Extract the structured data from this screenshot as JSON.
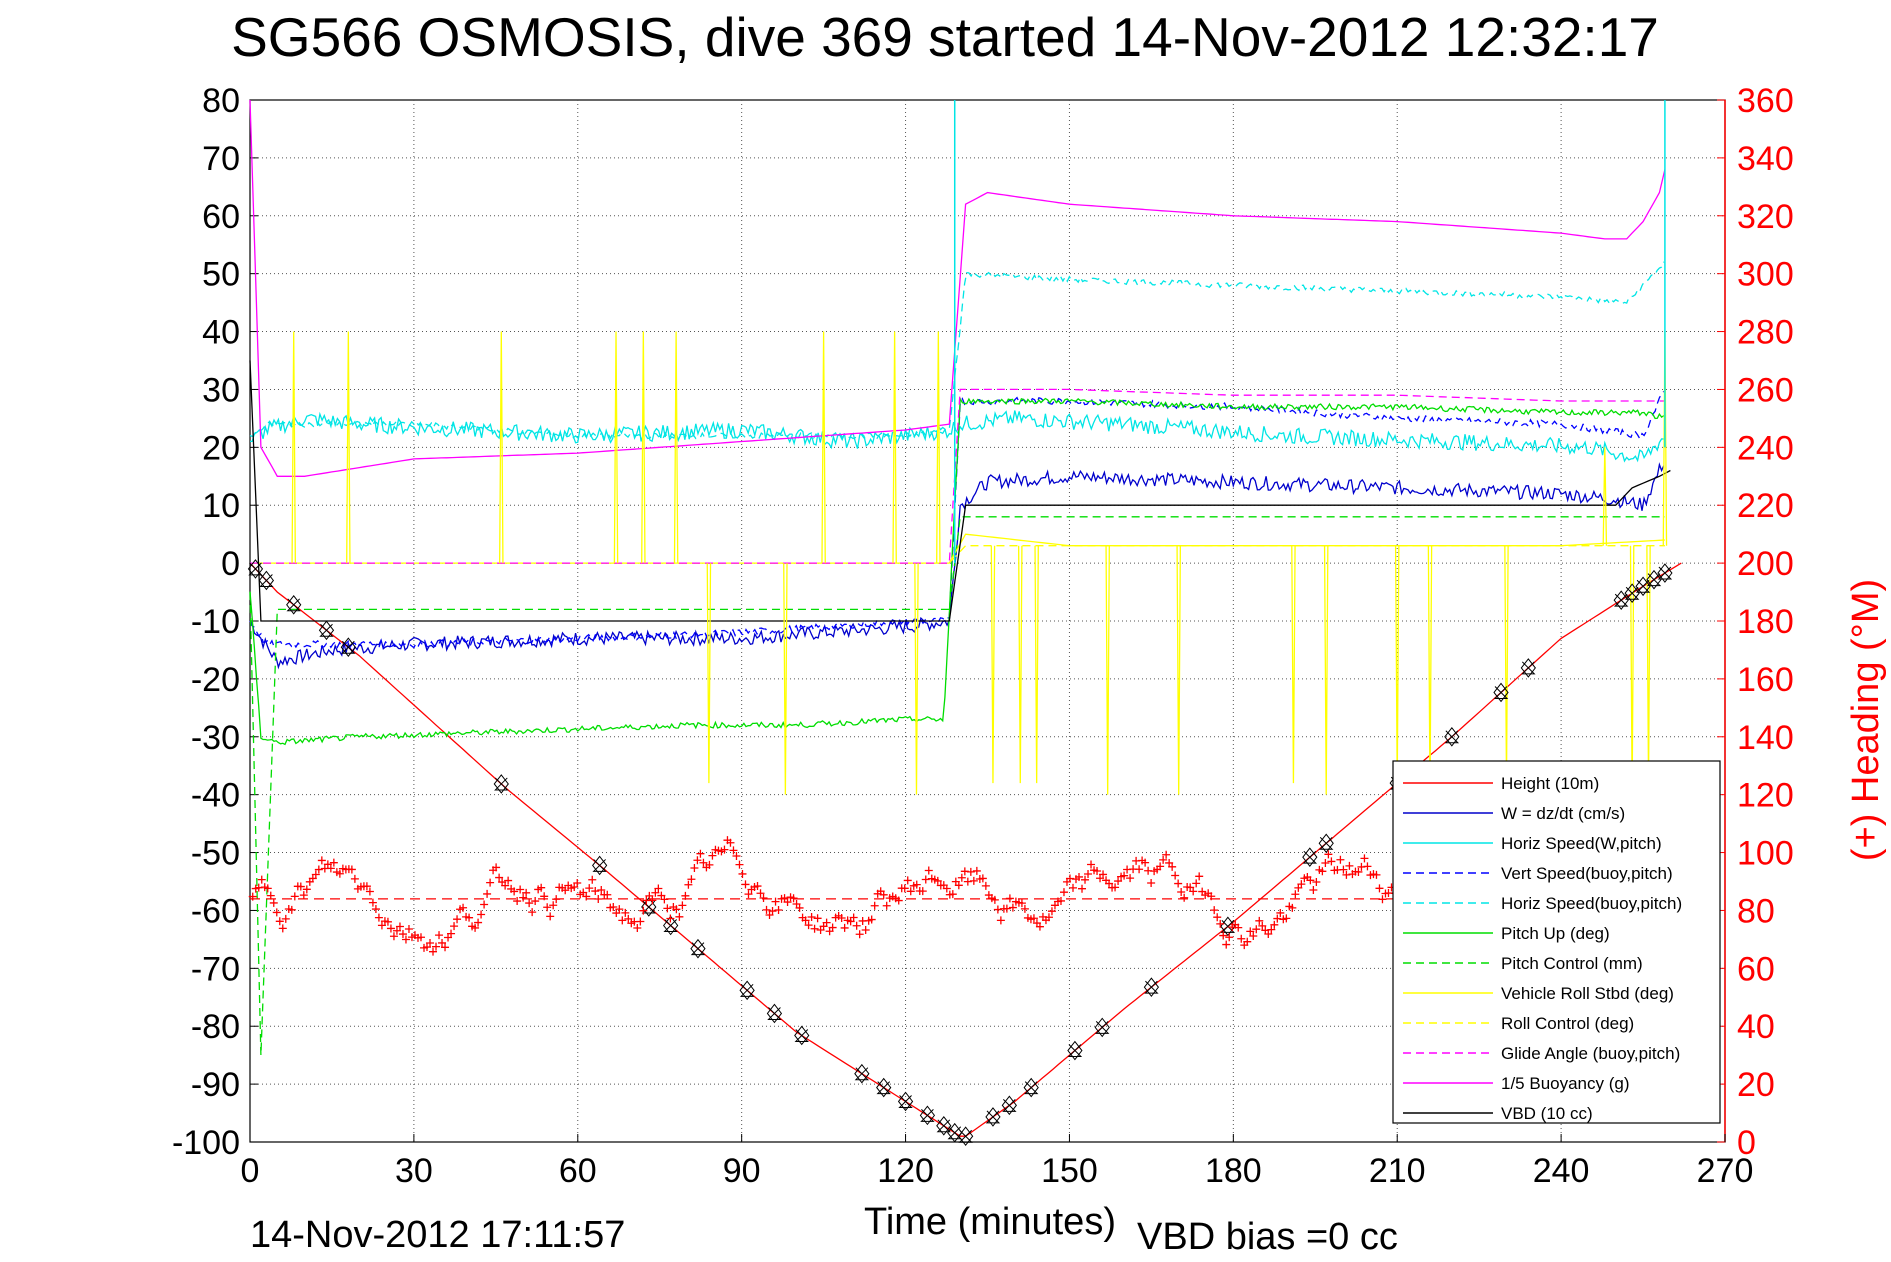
{
  "title": "SG566 OSMOSIS, dive 369 started 14-Nov-2012 12:32:17",
  "footer": {
    "end_time": "14-Nov-2012 17:11:57",
    "vbd_bias": "VBD bias =0 cc"
  },
  "colors": {
    "red": "#ff0000",
    "blue": "#0000cc",
    "cyan": "#00e5e5",
    "green": "#00dd00",
    "yellow": "#ffff00",
    "magenta": "#ff00ff",
    "black": "#000000"
  },
  "chart_data": {
    "type": "line",
    "title": "SG566 OSMOSIS, dive 369 started 14-Nov-2012 12:32:17",
    "xlabel": "Time (minutes)",
    "ylabel": "",
    "y2label": "(+) Heading (°M)",
    "xlim": [
      0,
      270
    ],
    "ylim": [
      -100,
      80
    ],
    "y2lim": [
      0,
      360
    ],
    "grid": true,
    "legend_position": "bottom-right",
    "xticks": [
      "0",
      "30",
      "60",
      "90",
      "120",
      "150",
      "180",
      "210",
      "240",
      "270"
    ],
    "yticks": [
      "80",
      "70",
      "60",
      "50",
      "40",
      "30",
      "20",
      "10",
      "0",
      "-10",
      "-20",
      "-30",
      "-40",
      "-50",
      "-60",
      "-70",
      "-80",
      "-90",
      "-100"
    ],
    "y2ticks": [
      "360",
      "340",
      "320",
      "300",
      "280",
      "260",
      "240",
      "220",
      "200",
      "180",
      "160",
      "140",
      "120",
      "100",
      "80",
      "60",
      "40",
      "20",
      "0"
    ],
    "series": [
      {
        "name": "Height (10m)",
        "color": "#ff0000",
        "style": "solid",
        "x": [
          0,
          5,
          20,
          47,
          65,
          80,
          100,
          120,
          130,
          131,
          140,
          160,
          180,
          200,
          220,
          240,
          255,
          262
        ],
        "y": [
          0,
          -5,
          -16,
          -39,
          -53,
          -65,
          -81,
          -93,
          -99,
          -99,
          -93,
          -77,
          -62,
          -46,
          -30,
          -13,
          -4,
          0
        ]
      },
      {
        "name": "W = dz/dt (cm/s)",
        "color": "#0000cc",
        "style": "solid",
        "x": [
          0,
          2,
          5,
          15,
          30,
          60,
          90,
          120,
          128,
          130,
          135,
          150,
          180,
          210,
          240,
          250,
          255,
          259
        ],
        "y": [
          -10,
          -13,
          -17,
          -15,
          -14,
          -13,
          -13,
          -11,
          -10,
          10,
          14,
          15,
          14,
          13,
          12,
          11,
          10,
          18
        ]
      },
      {
        "name": "Horiz Speed(W,pitch)",
        "color": "#00e5e5",
        "style": "solid",
        "x": [
          0,
          3,
          10,
          20,
          40,
          60,
          90,
          110,
          120,
          128,
          130,
          140,
          160,
          190,
          220,
          245,
          255,
          259
        ],
        "y": [
          21,
          23,
          25,
          24,
          23,
          22,
          23,
          21,
          22,
          23,
          24,
          25,
          24,
          22,
          21,
          20,
          18,
          22
        ]
      },
      {
        "name": "Vert Speed(buoy,pitch)",
        "color": "#0000ff",
        "style": "dashed",
        "x": [
          0,
          3,
          30,
          60,
          90,
          120,
          128,
          130,
          150,
          180,
          210,
          240,
          255,
          259
        ],
        "y": [
          -10,
          -14,
          -14,
          -13,
          -12,
          -10,
          -10,
          28,
          28,
          27,
          25,
          24,
          22,
          30
        ]
      },
      {
        "name": "Horiz Speed(buoy,pitch)",
        "color": "#00e5e5",
        "style": "dashed",
        "x": [
          0,
          3,
          30,
          60,
          90,
          120,
          128,
          131,
          150,
          180,
          210,
          240,
          252,
          259
        ],
        "y": [
          22,
          24,
          24,
          22,
          22,
          22,
          23,
          50,
          49,
          48,
          47,
          46,
          45,
          52
        ]
      },
      {
        "name": "Pitch Up (deg)",
        "color": "#00dd00",
        "style": "solid",
        "x": [
          0,
          2,
          5,
          20,
          50,
          80,
          100,
          120,
          127,
          130,
          150,
          180,
          210,
          240,
          255,
          259
        ],
        "y": [
          -5,
          -30,
          -31,
          -30,
          -29,
          -28,
          -28,
          -27,
          -27,
          28,
          28,
          27,
          27,
          26,
          26,
          25
        ]
      },
      {
        "name": "Pitch Control (mm)",
        "color": "#00dd00",
        "style": "dashed",
        "x": [
          0,
          2,
          5,
          30,
          60,
          90,
          120,
          128,
          130,
          150,
          180,
          210,
          240,
          259
        ],
        "y": [
          -5,
          -85,
          -8,
          -8,
          -8,
          -8,
          -8,
          -8,
          8,
          8,
          8,
          8,
          8,
          8
        ]
      },
      {
        "name": "Vehicle Roll Stbd (deg)",
        "color": "#ffff00",
        "style": "solid",
        "x": [
          0,
          30,
          60,
          90,
          120,
          128,
          131,
          150,
          180,
          210,
          240,
          259
        ],
        "y": [
          0,
          0,
          0,
          0,
          0,
          0,
          5,
          3,
          3,
          3,
          3,
          4
        ]
      },
      {
        "name": "Roll Control (deg)",
        "color": "#ffff00",
        "style": "dashed",
        "x": [
          0,
          30,
          60,
          90,
          120,
          128,
          131,
          150,
          180,
          210,
          240,
          259
        ],
        "y": [
          0,
          0,
          0,
          0,
          0,
          0,
          3,
          3,
          3,
          3,
          3,
          3
        ]
      },
      {
        "name": "Glide Angle (buoy,pitch)",
        "color": "#ff00ff",
        "style": "dashed",
        "x": [
          0,
          30,
          60,
          90,
          120,
          128,
          130,
          150,
          180,
          210,
          240,
          259
        ],
        "y": [
          0,
          0,
          0,
          0,
          0,
          0,
          30,
          30,
          29,
          29,
          28,
          28
        ]
      },
      {
        "name": "1/5 Buoyancy (g)",
        "color": "#ff00ff",
        "style": "solid",
        "x": [
          0,
          2,
          5,
          10,
          30,
          60,
          90,
          120,
          128,
          131,
          135,
          150,
          180,
          210,
          240,
          248,
          252,
          255,
          258,
          259
        ],
        "y": [
          80,
          20,
          15,
          15,
          18,
          19,
          21,
          23,
          24,
          62,
          64,
          62,
          60,
          59,
          57,
          56,
          56,
          59,
          64,
          68
        ]
      },
      {
        "name": "VBD (10 cc)",
        "color": "#000000",
        "style": "solid",
        "x": [
          0,
          2,
          60,
          128,
          131,
          200,
          250,
          253,
          258,
          260
        ],
        "y": [
          35,
          -10,
          -10,
          -10,
          10,
          10,
          10,
          13,
          15,
          16
        ]
      }
    ],
    "heading": {
      "name": "(+) Heading (°M)",
      "color": "#ff0000",
      "marker": "+",
      "mean": 84
    }
  }
}
